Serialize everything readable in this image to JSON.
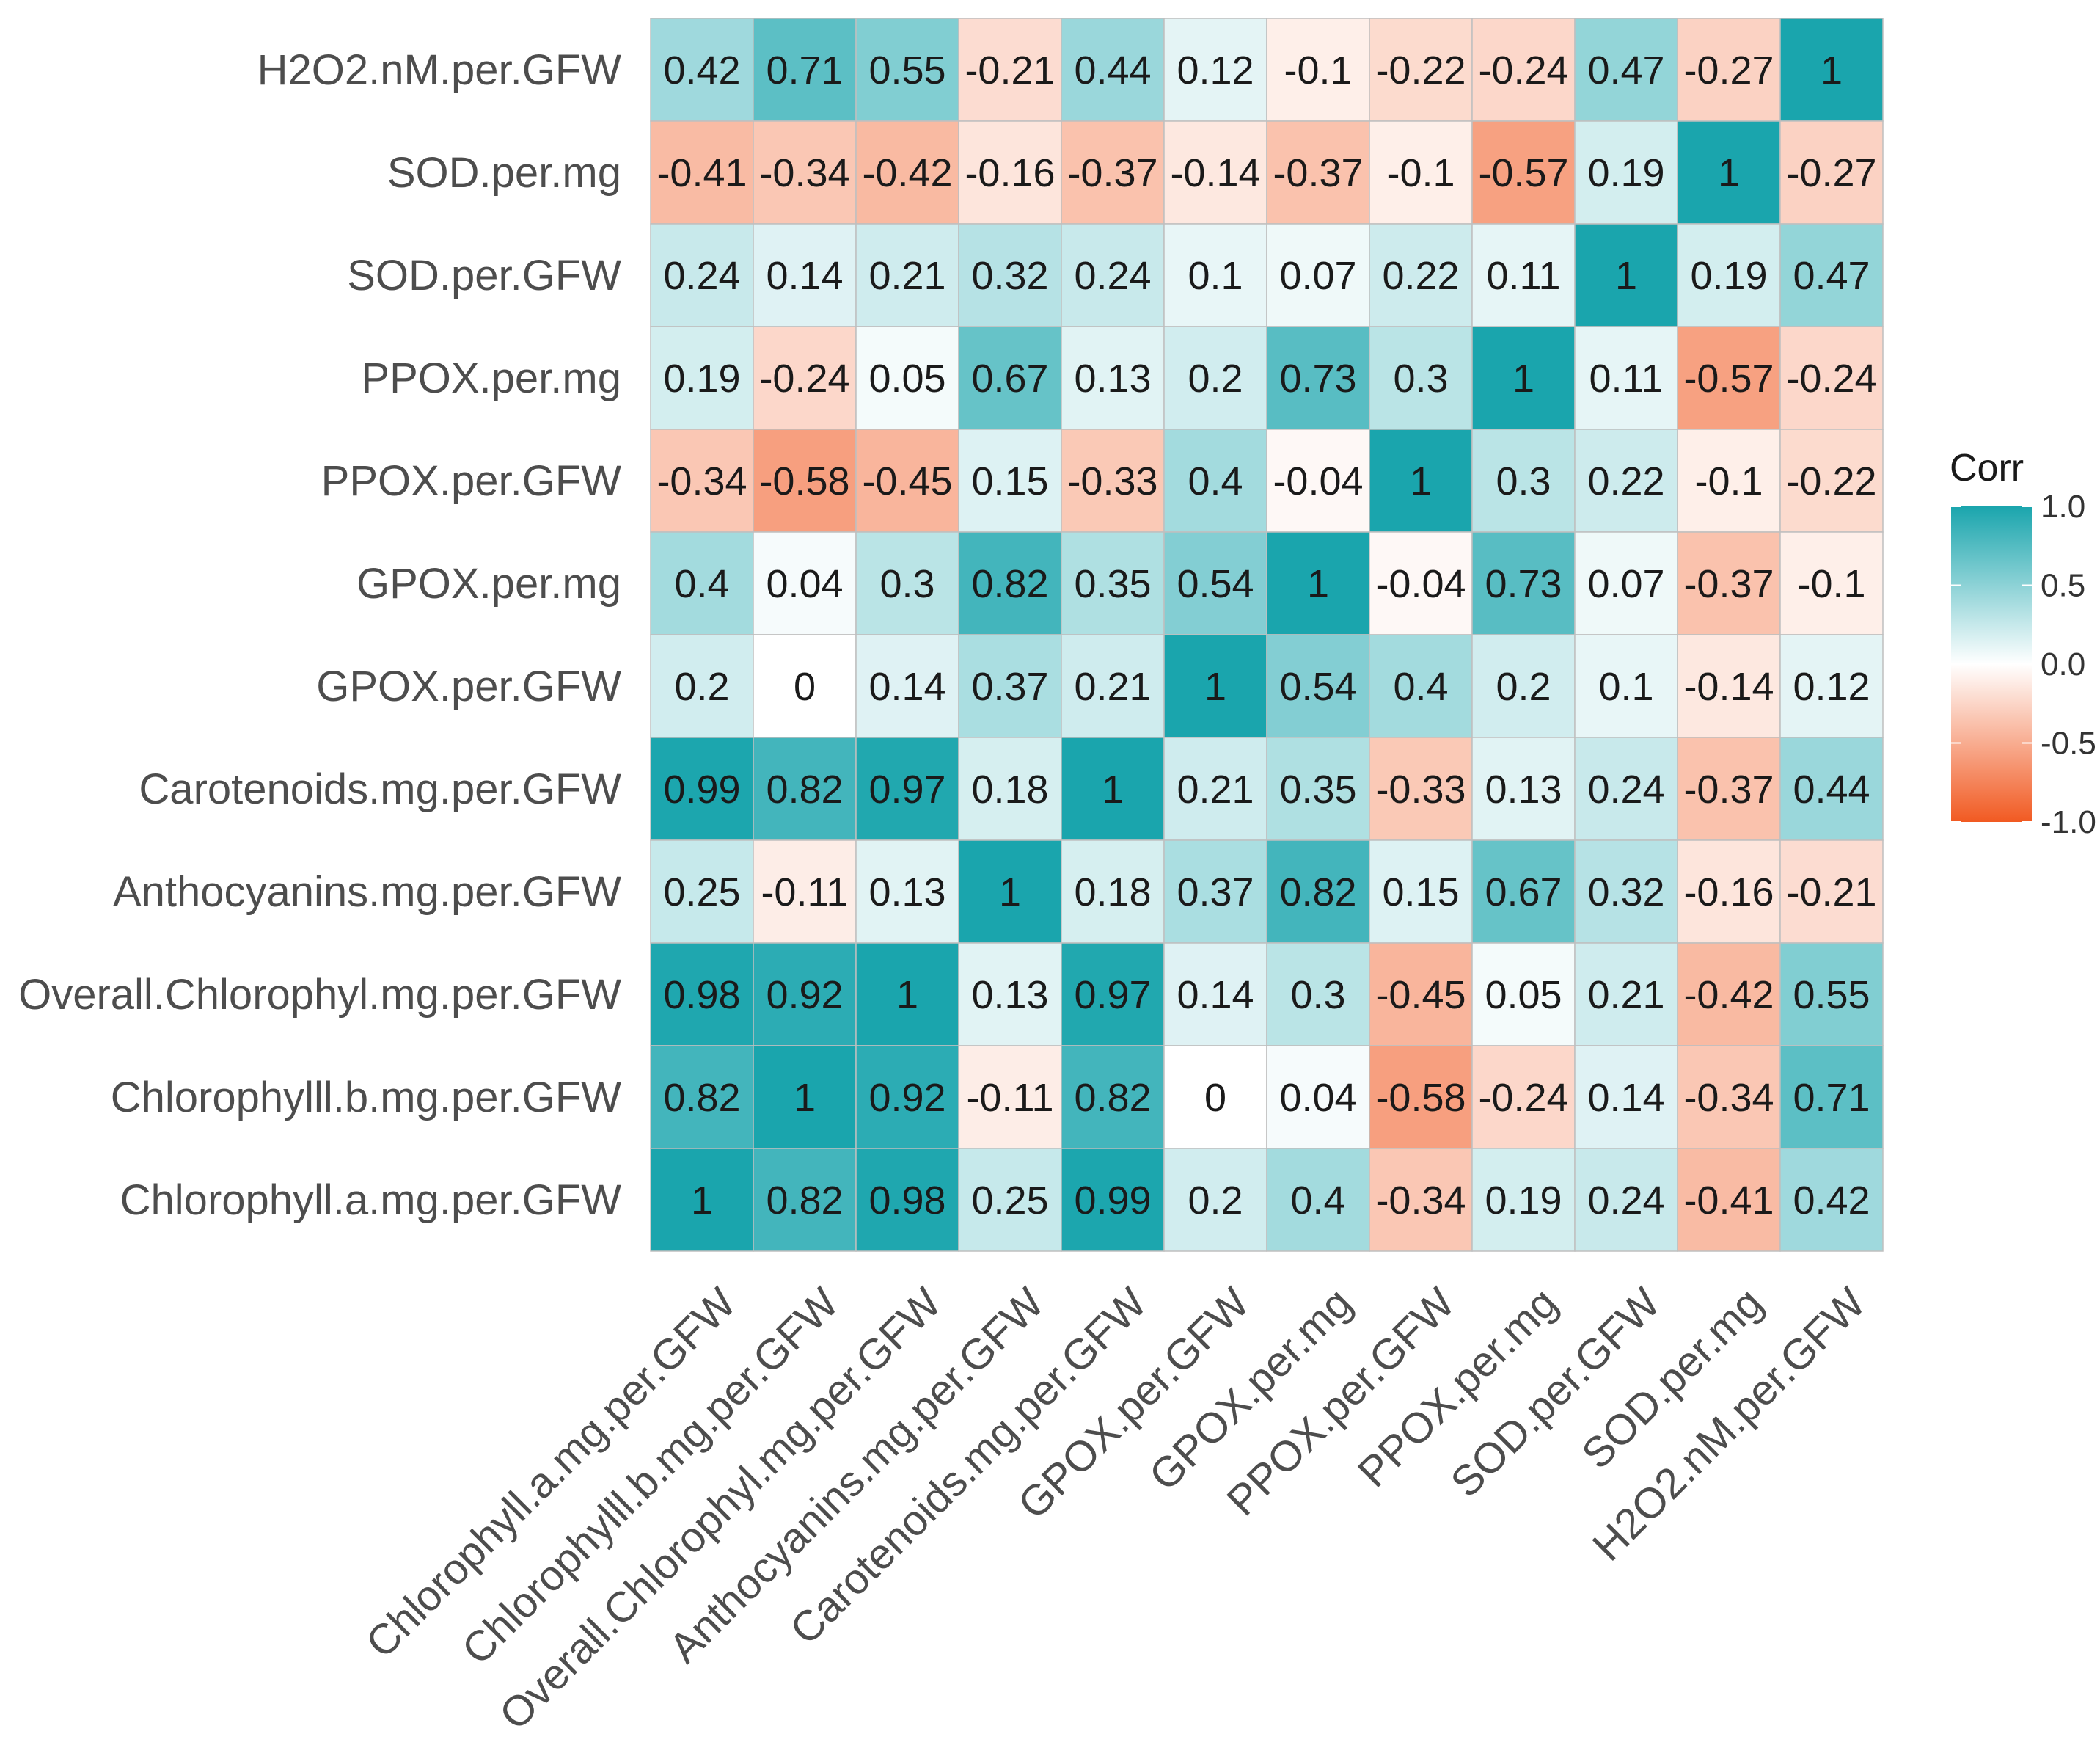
{
  "chart_data": {
    "type": "heatmap",
    "title": "",
    "xlabel": "",
    "ylabel": "",
    "variables": [
      "Chlorophyll.a.mg.per.GFW",
      "Chlorophylll.b.mg.per.GFW",
      "Overall.Chlorophyl.mg.per.GFW",
      "Anthocyanins.mg.per.GFW",
      "Carotenoids.mg.per.GFW",
      "GPOX.per.GFW",
      "GPOX.per.mg",
      "PPOX.per.GFW",
      "PPOX.per.mg",
      "SOD.per.GFW",
      "SOD.per.mg",
      "H2O2.nM.per.GFW"
    ],
    "matrix": [
      [
        1,
        0.82,
        0.98,
        0.25,
        0.99,
        0.2,
        0.4,
        -0.34,
        0.19,
        0.24,
        -0.41,
        0.42
      ],
      [
        0.82,
        1,
        0.92,
        -0.11,
        0.82,
        0,
        0.04,
        -0.58,
        -0.24,
        0.14,
        -0.34,
        0.71
      ],
      [
        0.98,
        0.92,
        1,
        0.13,
        0.97,
        0.14,
        0.3,
        -0.45,
        0.05,
        0.21,
        -0.42,
        0.55
      ],
      [
        0.25,
        -0.11,
        0.13,
        1,
        0.18,
        0.37,
        0.82,
        0.15,
        0.67,
        0.32,
        -0.16,
        -0.21
      ],
      [
        0.99,
        0.82,
        0.97,
        0.18,
        1,
        0.21,
        0.35,
        -0.33,
        0.13,
        0.24,
        -0.37,
        0.44
      ],
      [
        0.2,
        0,
        0.14,
        0.37,
        0.21,
        1,
        0.54,
        0.4,
        0.2,
        0.1,
        -0.14,
        0.12
      ],
      [
        0.4,
        0.04,
        0.3,
        0.82,
        0.35,
        0.54,
        1,
        -0.04,
        0.73,
        0.07,
        -0.37,
        -0.1
      ],
      [
        -0.34,
        -0.58,
        -0.45,
        0.15,
        -0.33,
        0.4,
        -0.04,
        1,
        0.3,
        0.22,
        -0.1,
        -0.22
      ],
      [
        0.19,
        -0.24,
        0.05,
        0.67,
        0.13,
        0.2,
        0.73,
        0.3,
        1,
        0.11,
        -0.57,
        -0.24
      ],
      [
        0.24,
        0.14,
        0.21,
        0.32,
        0.24,
        0.1,
        0.07,
        0.22,
        0.11,
        1,
        0.19,
        0.47
      ],
      [
        -0.41,
        -0.34,
        -0.42,
        -0.16,
        -0.37,
        -0.14,
        -0.37,
        -0.1,
        -0.57,
        0.19,
        1,
        -0.27
      ],
      [
        0.42,
        0.71,
        0.55,
        -0.21,
        0.44,
        0.12,
        -0.1,
        -0.22,
        -0.24,
        0.47,
        -0.27,
        1
      ]
    ],
    "row_order_top_to_bottom": [
      11,
      10,
      9,
      8,
      7,
      6,
      5,
      4,
      3,
      2,
      1,
      0
    ],
    "legend": {
      "title": "Corr",
      "ticks": [
        "1.0",
        "0.5",
        "0.0",
        "-0.5",
        "-1.0"
      ],
      "tick_values": [
        1.0,
        0.5,
        0.0,
        -0.5,
        -1.0
      ],
      "range": [
        -1.0,
        1.0
      ],
      "position": "right"
    },
    "colors": {
      "positive": "#1aa5ad",
      "neutral": "#ffffff",
      "negative": "#f15a22",
      "cell_border": "#bfbfbf"
    }
  }
}
